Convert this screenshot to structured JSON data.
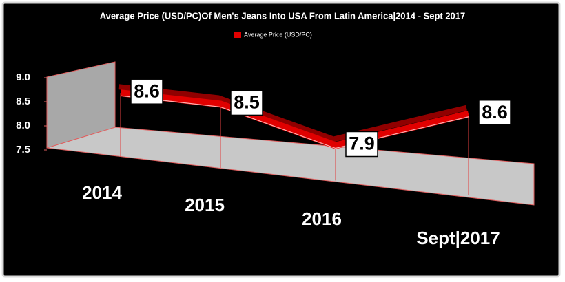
{
  "chart_data": {
    "type": "line",
    "title": "Average Price (USD/PC)Of Men's Jeans Into USA From Latin America|2014 - Sept 2017",
    "categories": [
      "2014",
      "2015",
      "2016",
      "Sept|2017"
    ],
    "series": [
      {
        "name": "Average Price (USD/PC)",
        "color": "#e00000",
        "values": [
          8.6,
          8.5,
          7.9,
          8.6
        ]
      }
    ],
    "ylim": [
      7.5,
      9.0
    ],
    "yticks": [
      {
        "value": 9.0,
        "label": "9.0"
      },
      8.5,
      {
        "value": 8.0,
        "label": "8.0"
      },
      7.5
    ]
  }
}
